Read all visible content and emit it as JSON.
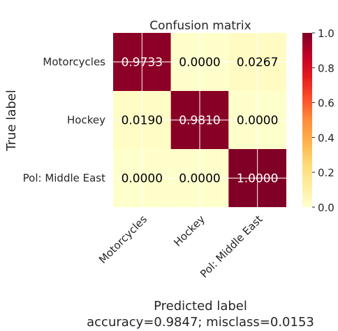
{
  "chart_data": {
    "type": "heatmap",
    "title": "Confusion matrix",
    "ylabel": "True label",
    "xlabel": "Predicted label",
    "subtitle": "accuracy=0.9847; misclass=0.0153",
    "row_labels": [
      "Motorcycles",
      "Hockey",
      "Pol: Middle East"
    ],
    "col_labels": [
      "Motorcycles",
      "Hockey",
      "Pol: Middle East"
    ],
    "values": [
      [
        0.9733,
        0.0,
        0.0267
      ],
      [
        0.019,
        0.981,
        0.0
      ],
      [
        0.0,
        0.0,
        1.0
      ]
    ],
    "value_labels": [
      [
        "0.9733",
        "0.0000",
        "0.0267"
      ],
      [
        "0.0190",
        "0.9810",
        "0.0000"
      ],
      [
        "0.0000",
        "0.0000",
        "1.0000"
      ]
    ],
    "colormap": "YlOrRd",
    "vmin": 0.0,
    "vmax": 1.0,
    "colorbar_ticks": [
      "0.0",
      "0.2",
      "0.4",
      "0.6",
      "0.8",
      "1.0"
    ],
    "grid": true,
    "colors": {
      "low": "#ffffcc",
      "mid": "#fd8d3c",
      "high": "#800026"
    }
  }
}
